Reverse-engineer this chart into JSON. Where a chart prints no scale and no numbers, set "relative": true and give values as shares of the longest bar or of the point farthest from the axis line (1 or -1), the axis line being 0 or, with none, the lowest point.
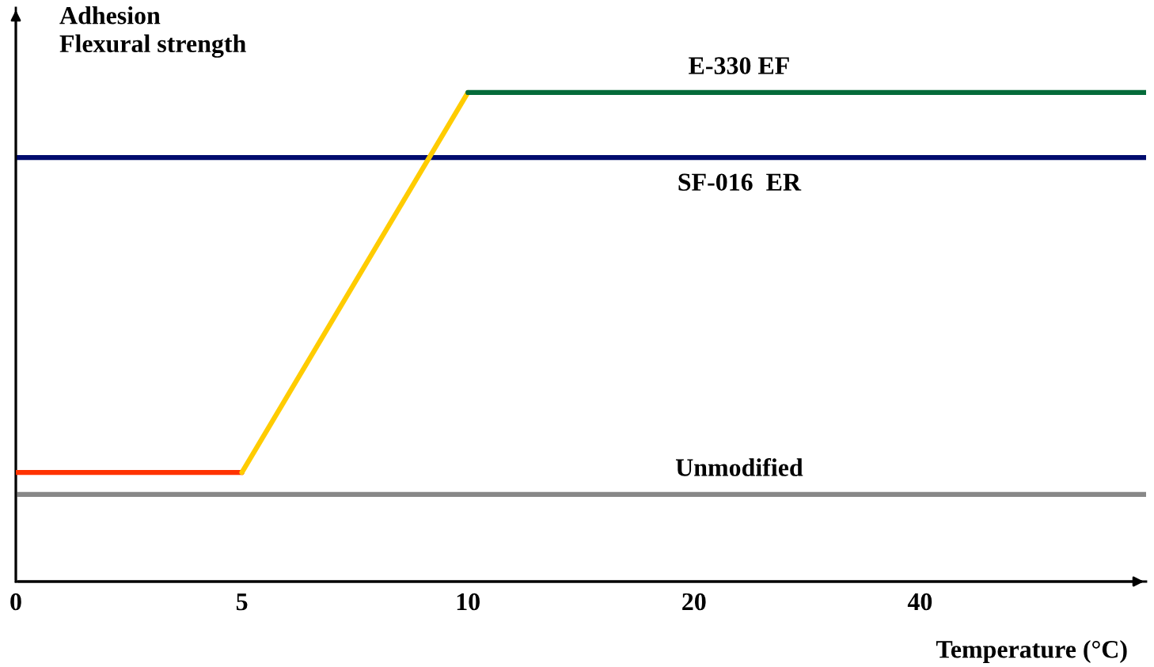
{
  "chart_data": {
    "type": "line",
    "relative": true,
    "xlabel": "Temperature (°C)",
    "ylabel": "Adhesion\nFlexural strength",
    "categories": [
      "0",
      "5",
      "10",
      "20",
      "40",
      null
    ],
    "grid": false,
    "legend": false,
    "marker": "none",
    "line_style": "solid",
    "series": [
      {
        "color": "#ff3300",
        "values": [
          0.223,
          0.223,
          null,
          null,
          null,
          null
        ]
      },
      {
        "color": "#ffcc00",
        "values": [
          null,
          0.223,
          1,
          null,
          null,
          null
        ]
      },
      {
        "name": "E-330 EF",
        "color": "#056b3a",
        "values": [
          null,
          null,
          1,
          1,
          1,
          1
        ]
      },
      {
        "name": "SF-016  ER",
        "color": "#000c6e",
        "values": [
          0.867,
          0.867,
          0.867,
          0.867,
          0.867,
          0.867
        ]
      },
      {
        "name": "Unmodified",
        "color": "#888888",
        "values": [
          0.178,
          0.178,
          0.178,
          0.178,
          0.178,
          0.178
        ]
      }
    ]
  }
}
